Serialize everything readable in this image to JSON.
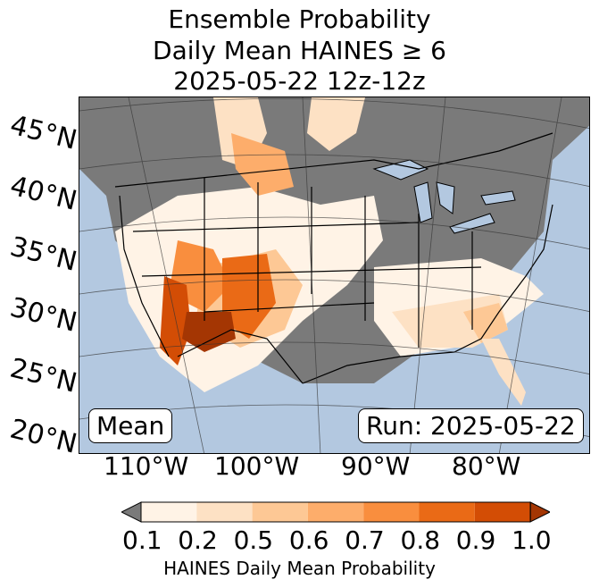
{
  "title": {
    "line1": "Ensemble Probability",
    "line2": "Daily Mean HAINES ≥ 6",
    "line3": "2025-05-22 12z-12z"
  },
  "map": {
    "lat_labels": [
      "45°N",
      "40°N",
      "35°N",
      "30°N",
      "25°N",
      "20°N"
    ],
    "lon_labels": [
      "110°W",
      "100°W",
      "90°W",
      "80°W"
    ],
    "colors": {
      "ocean": "#b3c8e0",
      "below_threshold": "#7a7a7a",
      "border": "#000000"
    }
  },
  "labels": {
    "mean": "Mean",
    "run": "Run: 2025-05-22"
  },
  "colorbar": {
    "ticks": [
      "0.1",
      "0.2",
      "0.5",
      "0.6",
      "0.7",
      "0.8",
      "0.9",
      "1.0"
    ],
    "colors": [
      "#fff3e6",
      "#fde1c4",
      "#fdc895",
      "#fdad6b",
      "#f98e3e",
      "#ea6a16",
      "#d34d05"
    ],
    "under_color": "#7a7a7a",
    "over_color": "#a43603",
    "label": "HAINES Daily Mean Probability"
  }
}
